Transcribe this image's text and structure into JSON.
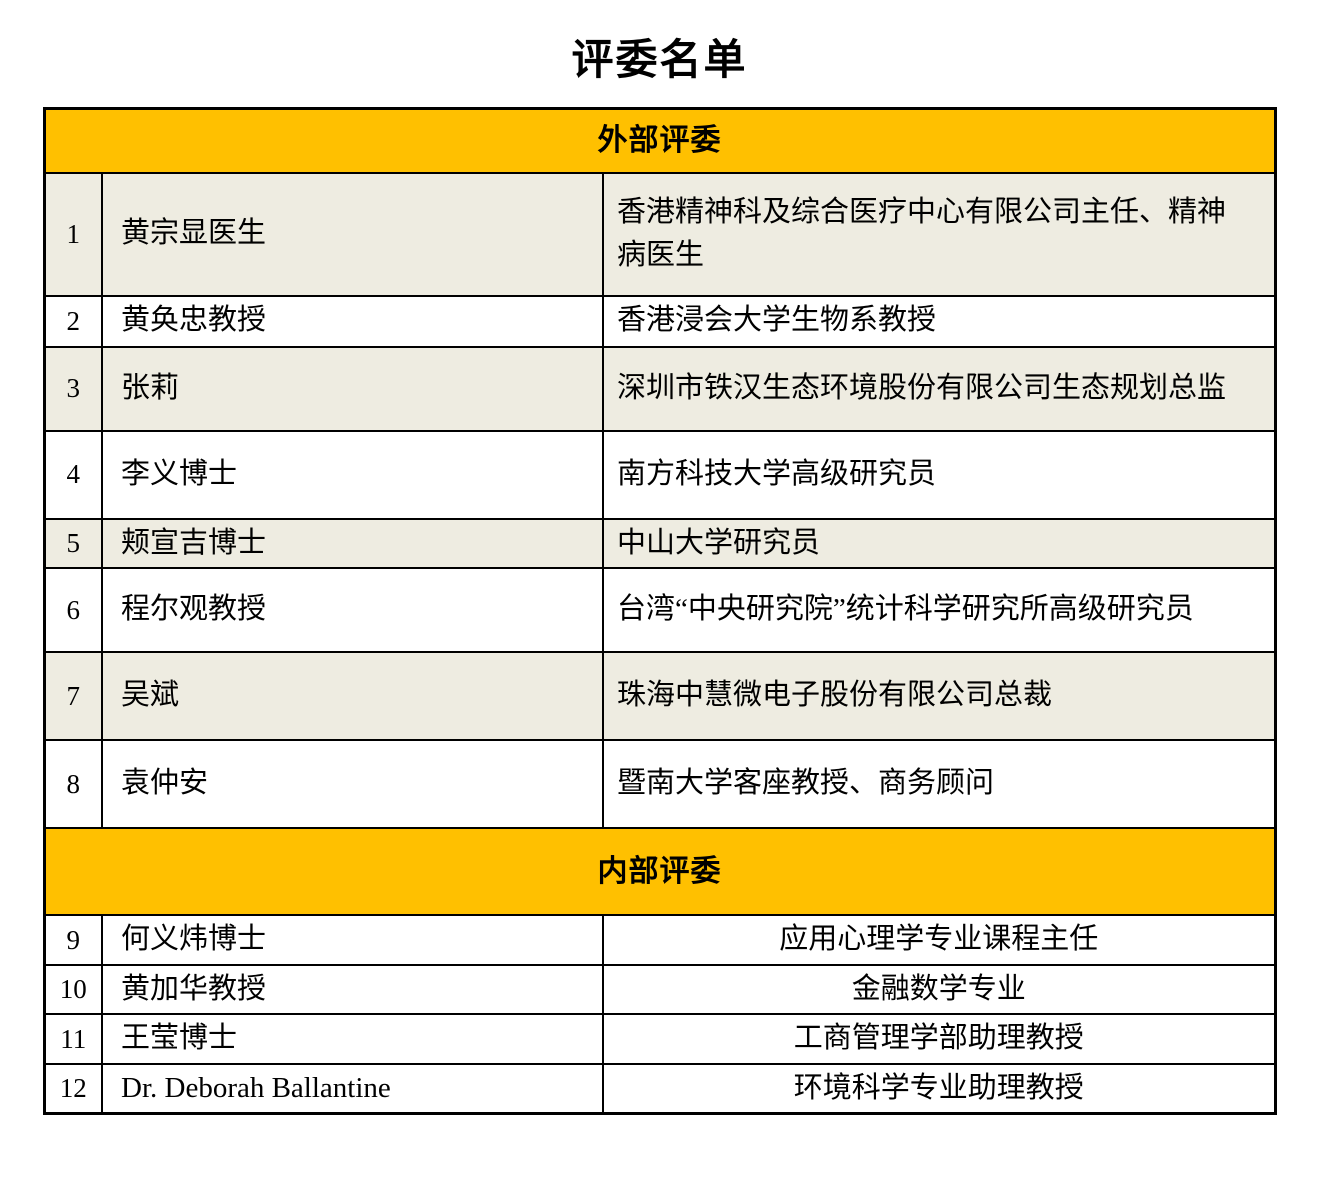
{
  "page": {
    "title": "评委名单"
  },
  "colors": {
    "band_bg": "#FFC000",
    "shaded_row_bg": "#EEECE1",
    "row_bg": "#FFFFFF",
    "border": "#000000",
    "text": "#000000"
  },
  "table": {
    "sections": [
      {
        "header": "外部评委",
        "affiliation_align": "left",
        "rows": [
          {
            "num": "1",
            "name": "黄宗显医生",
            "affiliation": "香港精神科及综合医疗中心有限公司主任、精神病医生",
            "shaded": true
          },
          {
            "num": "2",
            "name": "黄奂忠教授",
            "affiliation": "香港浸会大学生物系教授",
            "shaded": false
          },
          {
            "num": "3",
            "name": "张莉",
            "affiliation": "深圳市铁汉生态环境股份有限公司生态规划总监",
            "shaded": true
          },
          {
            "num": "4",
            "name": "李义博士",
            "affiliation": "南方科技大学高级研究员",
            "shaded": false
          },
          {
            "num": "5",
            "name": "颊宣吉博士",
            "affiliation": "中山大学研究员",
            "shaded": true
          },
          {
            "num": "6",
            "name": "程尔观教授",
            "affiliation": "台湾“中央研究院”统计科学研究所高级研究员",
            "shaded": false
          },
          {
            "num": "7",
            "name": "吴斌",
            "affiliation": "珠海中慧微电子股份有限公司总裁",
            "shaded": true
          },
          {
            "num": "8",
            "name": "袁仲安",
            "affiliation": "暨南大学客座教授、商务顾问",
            "shaded": false
          }
        ]
      },
      {
        "header": "内部评委",
        "affiliation_align": "center",
        "rows": [
          {
            "num": "9",
            "name": "何义炜博士",
            "affiliation": "应用心理学专业课程主任",
            "shaded": false
          },
          {
            "num": "10",
            "name": "黄加华教授",
            "affiliation": "金融数学专业",
            "shaded": false
          },
          {
            "num": "11",
            "name": "王莹博士",
            "affiliation": "工商管理学部助理教授",
            "shaded": false
          },
          {
            "num": "12",
            "name": "Dr. Deborah Ballantine",
            "affiliation": "环境科学专业助理教授",
            "shaded": false
          }
        ]
      }
    ]
  }
}
